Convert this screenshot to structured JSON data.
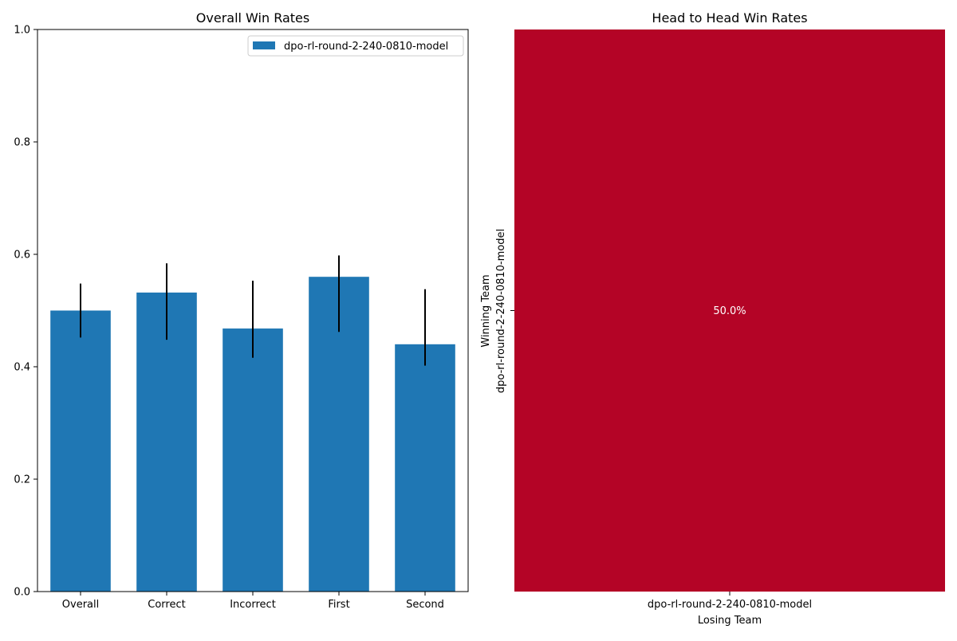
{
  "chart_data": [
    {
      "type": "bar",
      "title": "Overall Win Rates",
      "xlabel": "",
      "ylabel": "",
      "categories": [
        "Overall",
        "Correct",
        "Incorrect",
        "First",
        "Second"
      ],
      "series": [
        {
          "name": "dpo-rl-round-2-240-0810-model",
          "values": [
            0.5,
            0.532,
            0.468,
            0.56,
            0.44
          ],
          "error_low": [
            0.452,
            0.448,
            0.416,
            0.462,
            0.402
          ],
          "error_high": [
            0.548,
            0.584,
            0.553,
            0.598,
            0.538
          ]
        }
      ],
      "ylim": [
        0,
        1.0
      ],
      "yticks": [
        0.0,
        0.2,
        0.4,
        0.6,
        0.8,
        1.0
      ],
      "ytick_labels": [
        "0.0",
        "0.2",
        "0.4",
        "0.6",
        "0.8",
        "1.0"
      ],
      "legend": "top-right",
      "grid": false,
      "colors": {
        "bar": "#1f77b4",
        "error": "#000000"
      }
    },
    {
      "type": "heatmap",
      "title": "Head to Head Win Rates",
      "xlabel": "Losing Team",
      "ylabel": "Winning Team",
      "x_categories": [
        "dpo-rl-round-2-240-0810-model"
      ],
      "y_categories": [
        "dpo-rl-round-2-240-0810-model"
      ],
      "values": [
        [
          0.5
        ]
      ],
      "cell_labels": [
        [
          "50.0%"
        ]
      ],
      "colors": {
        "cell": "#b40426",
        "annotation": "#ffffff"
      }
    }
  ]
}
